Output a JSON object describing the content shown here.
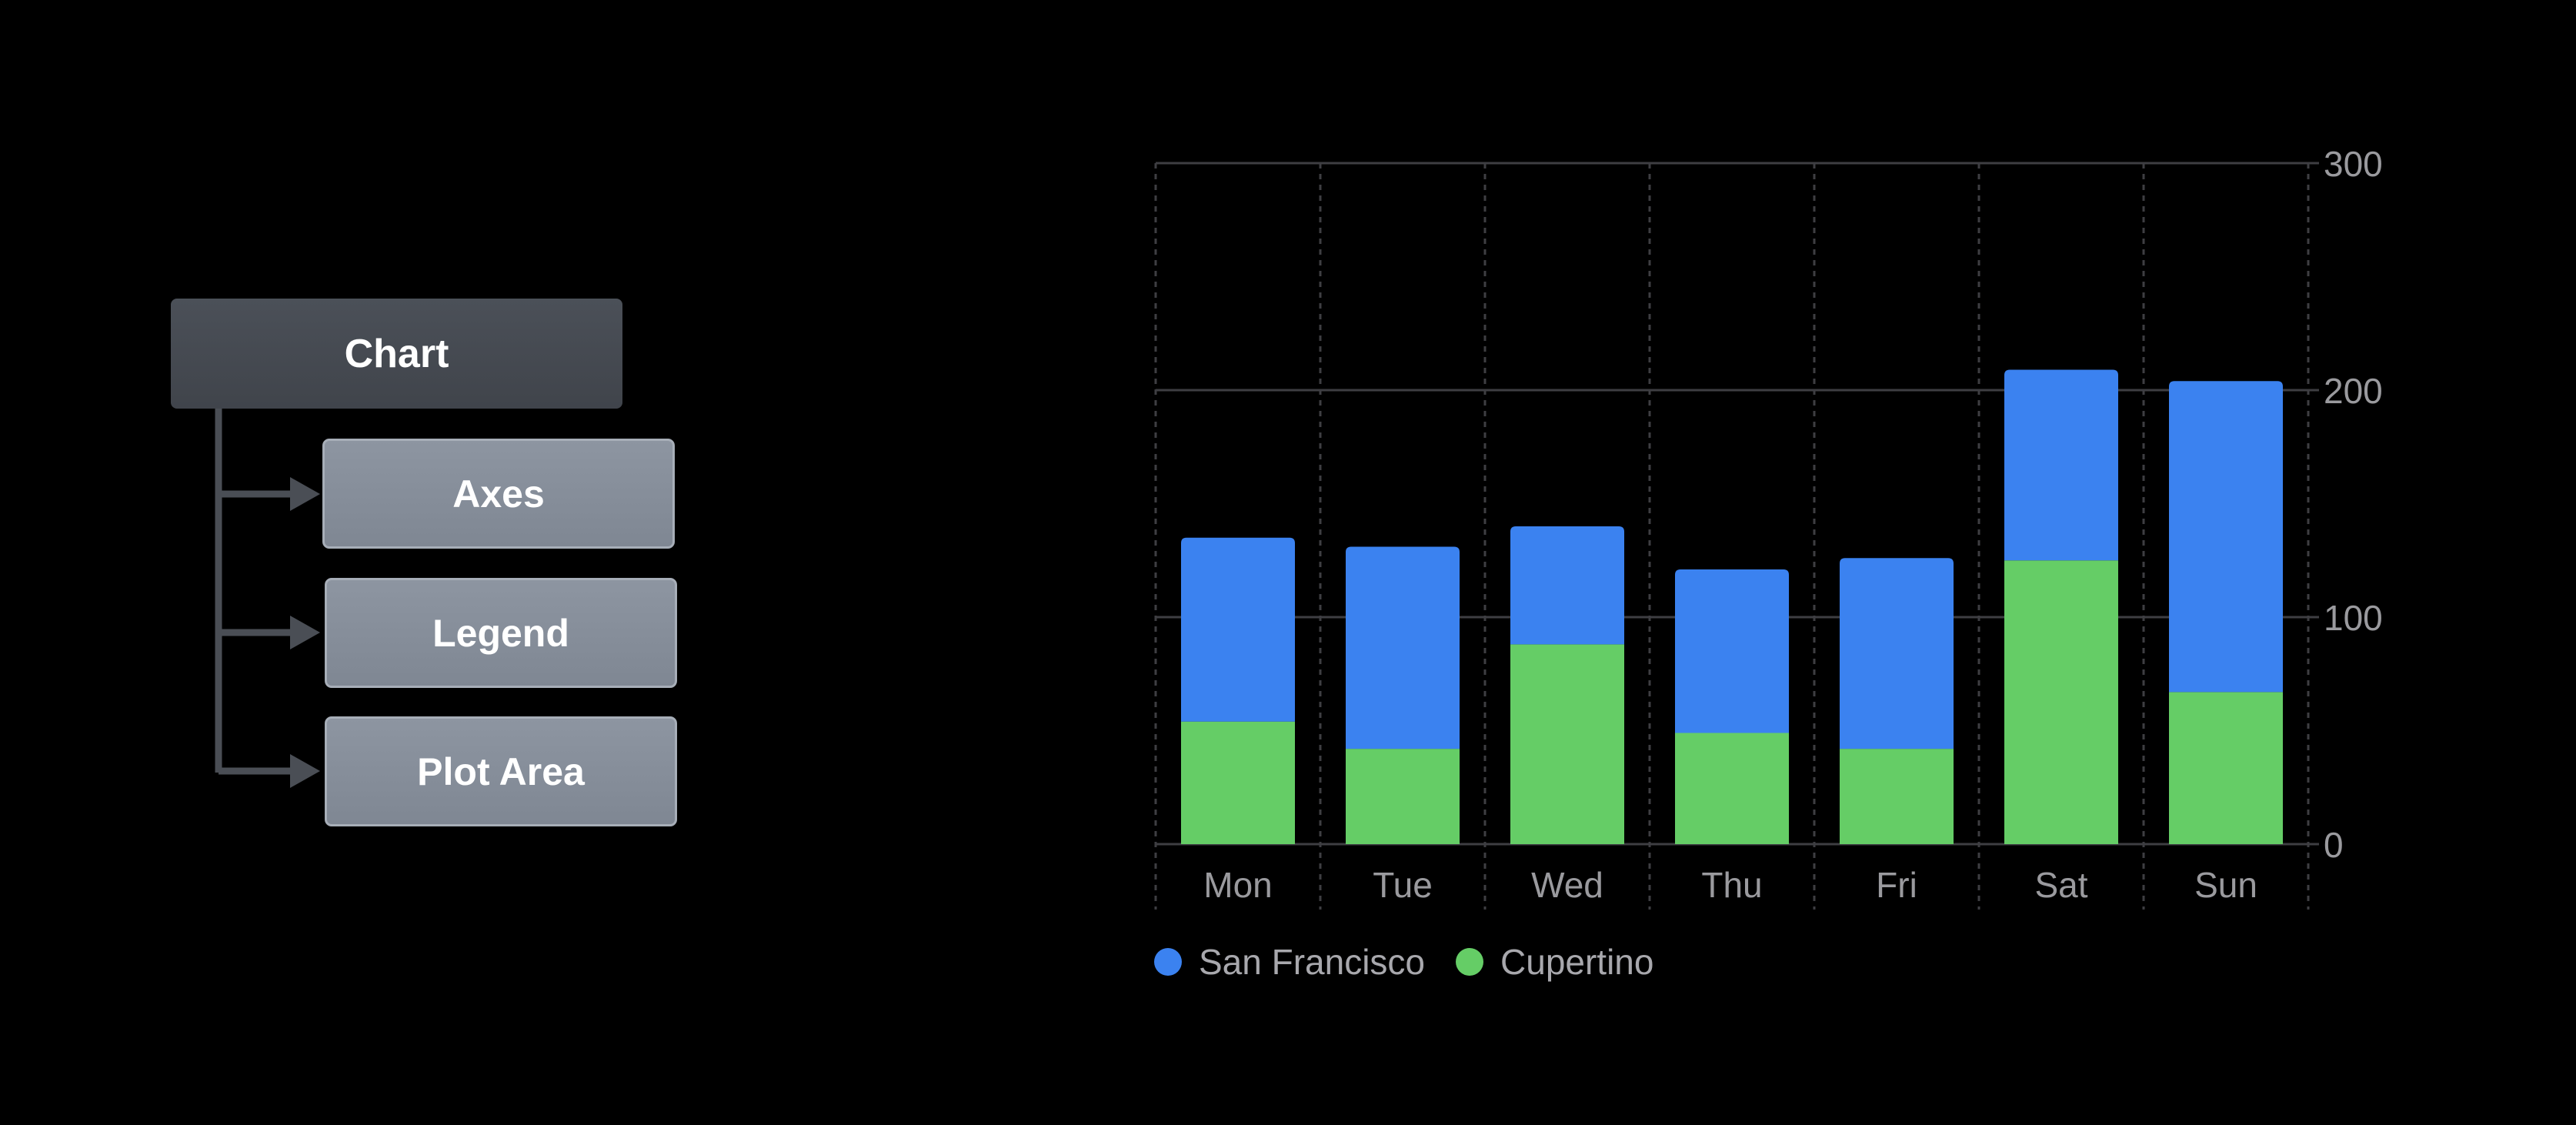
{
  "diagram": {
    "root_label": "Chart",
    "children": [
      "Axes",
      "Legend",
      "Plot Area"
    ],
    "line_color": "#4a4e55",
    "root_color": "#454a51",
    "child_color": "#868e9a"
  },
  "chart_data": {
    "type": "bar",
    "stacked": true,
    "categories": [
      "Mon",
      "Tue",
      "Wed",
      "Thu",
      "Fri",
      "Sat",
      "Sun"
    ],
    "series": [
      {
        "name": "Cupertino",
        "color": "#65cd66",
        "values": [
          54,
          42,
          88,
          49,
          42,
          125,
          67
        ]
      },
      {
        "name": "San Francisco",
        "color": "#3b82f0",
        "values": [
          81,
          89,
          52,
          72,
          84,
          84,
          137
        ]
      }
    ],
    "ylim": [
      0,
      300
    ],
    "yticks": [
      0,
      100,
      200,
      300
    ],
    "y_axis_position": "right",
    "grid": true,
    "legend_position": "bottom-left",
    "legend": [
      "San Francisco",
      "Cupertino"
    ],
    "title": "",
    "xlabel": "",
    "ylabel": ""
  }
}
